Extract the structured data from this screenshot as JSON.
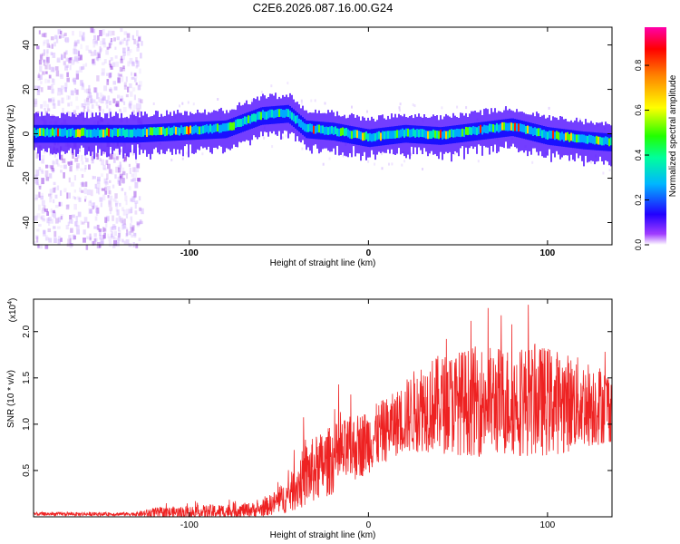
{
  "title": "C2E6.2026.087.16.00.G24",
  "chart_data": [
    {
      "type": "heatmap",
      "name": "spectrogram",
      "xlabel": "Height of straight line (km)",
      "ylabel": "Frequency (Hz)",
      "xlim": [
        -187,
        136
      ],
      "ylim": [
        -50,
        48
      ],
      "xticks": [
        -100,
        0,
        100
      ],
      "yticks": [
        -40,
        -20,
        0,
        20,
        40
      ],
      "band_center": [
        [
          -187,
          0
        ],
        [
          -130,
          0
        ],
        [
          -80,
          2
        ],
        [
          -60,
          8
        ],
        [
          -45,
          9
        ],
        [
          -35,
          2
        ],
        [
          -20,
          1
        ],
        [
          0,
          -2
        ],
        [
          20,
          0
        ],
        [
          40,
          -1
        ],
        [
          60,
          1
        ],
        [
          80,
          3
        ],
        [
          100,
          -1
        ],
        [
          120,
          -3
        ],
        [
          136,
          -4
        ]
      ],
      "colorbar": {
        "label": "Normalized spectral amplitude",
        "ticks": [
          "0.0",
          "0.2",
          "0.4",
          "0.6",
          "0.8"
        ],
        "range": [
          0,
          0.97
        ]
      }
    },
    {
      "type": "line",
      "name": "snr",
      "xlabel": "Height of straight line (km)",
      "ylabel": "SNR (10 * v/v)",
      "scale_label": "(x10",
      "scale_exp": "4",
      "scale_close": ")",
      "xlim": [
        -187,
        136
      ],
      "ylim": [
        0,
        2.35
      ],
      "xticks": [
        -100,
        0,
        100
      ],
      "yticks": [
        "0.5",
        "1.0",
        "1.5",
        "2.0"
      ],
      "color": "#ee2222",
      "envelope": [
        {
          "x": -187,
          "mean": 0.03,
          "amp": 0.02
        },
        {
          "x": -130,
          "mean": 0.03,
          "amp": 0.02
        },
        {
          "x": -120,
          "mean": 0.04,
          "amp": 0.06
        },
        {
          "x": -90,
          "mean": 0.05,
          "amp": 0.08
        },
        {
          "x": -60,
          "mean": 0.08,
          "amp": 0.08
        },
        {
          "x": -45,
          "mean": 0.22,
          "amp": 0.18
        },
        {
          "x": -35,
          "mean": 0.45,
          "amp": 0.35
        },
        {
          "x": -20,
          "mean": 0.62,
          "amp": 0.38
        },
        {
          "x": 0,
          "mean": 0.82,
          "amp": 0.35
        },
        {
          "x": 15,
          "mean": 1.0,
          "amp": 0.35
        },
        {
          "x": 30,
          "mean": 1.2,
          "amp": 0.5
        },
        {
          "x": 60,
          "mean": 1.25,
          "amp": 0.6
        },
        {
          "x": 100,
          "mean": 1.25,
          "amp": 0.6
        },
        {
          "x": 136,
          "mean": 1.2,
          "amp": 0.4
        }
      ]
    }
  ]
}
